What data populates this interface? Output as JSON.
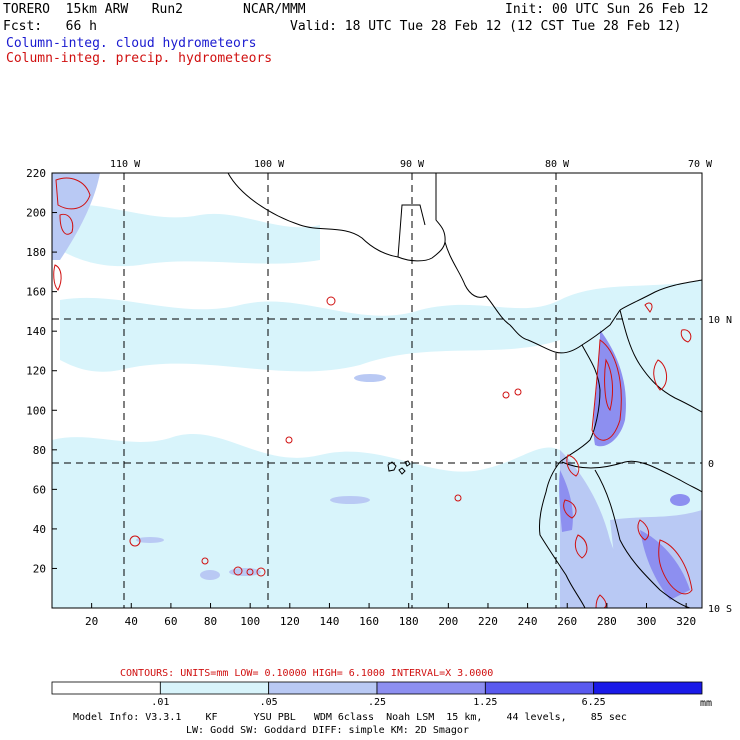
{
  "header": {
    "model": "TORERO  15km ARW   Run2",
    "org": "NCAR/MMM",
    "init": "Init: 00 UTC Sun 26 Feb 12",
    "fcst": "Fcst:   66 h",
    "valid": "Valid: 18 UTC Tue 28 Feb 12 (12 CST Tue 28 Feb 12)",
    "field_cloud": "Column-integ. cloud hydrometeors",
    "field_precip": "Column-integ. precip. hydrometeors"
  },
  "map": {
    "lon_labels": [
      "110 W",
      "100 W",
      "90 W",
      "80 W",
      "70 W"
    ],
    "lat_labels": [
      "10 N",
      "0",
      "10 S"
    ],
    "x_ticks": [
      "20",
      "40",
      "60",
      "80",
      "100",
      "120",
      "140",
      "160",
      "180",
      "200",
      "220",
      "240",
      "260",
      "280",
      "300",
      "320"
    ],
    "y_ticks": [
      "20",
      "40",
      "60",
      "80",
      "100",
      "120",
      "140",
      "160",
      "180",
      "200",
      "220"
    ]
  },
  "contours": {
    "text": "CONTOURS:  UNITS=mm  LOW= 0.10000      HIGH=  6.1000      INTERVAL=X  3.0000",
    "color": "#d01010"
  },
  "colorbar": {
    "labels": [
      ".01",
      ".05",
      ".25",
      "1.25",
      "6.25"
    ],
    "unit": "mm",
    "colors": [
      "#ffffff",
      "#d8f4fb",
      "#b9c9f4",
      "#8d8ff0",
      "#5a5aef",
      "#1a1ae8"
    ]
  },
  "footer": {
    "line1": "Model Info: V3.3.1    KF      YSU PBL   WDM 6class  Noah LSM  15 km,    44 levels,    85 sec",
    "line2": "LW: Godd SW: Goddard DIFF: simple KM: 2D Smagor"
  }
}
